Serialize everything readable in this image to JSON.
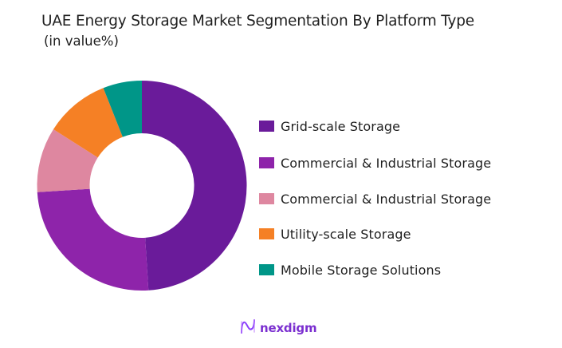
{
  "chart_data": {
    "type": "pie",
    "variant": "donut",
    "title": "UAE Energy Storage Market Segmentation By Platform Type",
    "subtitle": "(in value%)",
    "categories": [
      "Grid-scale Storage",
      "Commercial & Industrial Storage",
      "Commercial & Industrial Storage",
      "Utility-scale Storage",
      "Mobile Storage Solutions"
    ],
    "values": [
      49,
      25,
      10,
      10,
      6
    ],
    "colors": [
      "#6a1b9a",
      "#8e24aa",
      "#de87a0",
      "#f58025",
      "#009688"
    ],
    "legend_position": "right",
    "start_angle": "12 o'clock",
    "direction": "clockwise"
  },
  "header": {
    "title": "UAE Energy Storage Market Segmentation By Platform Type",
    "subtitle": " (in value%)"
  },
  "legend": {
    "items": [
      {
        "label": "Grid-scale Storage",
        "color": "#6a1b9a"
      },
      {
        "label": "Commercial & Industrial Storage",
        "color": "#8e24aa"
      },
      {
        "label": "Commercial & Industrial Storage",
        "color": "#de87a0"
      },
      {
        "label": " Utility-scale Storage",
        "color": "#f58025"
      },
      {
        "label": "Mobile Storage Solutions",
        "color": "#009688"
      }
    ]
  },
  "branding": {
    "logo_text": "nexdigm",
    "logo_icon": "nexdigm-wave-icon"
  }
}
